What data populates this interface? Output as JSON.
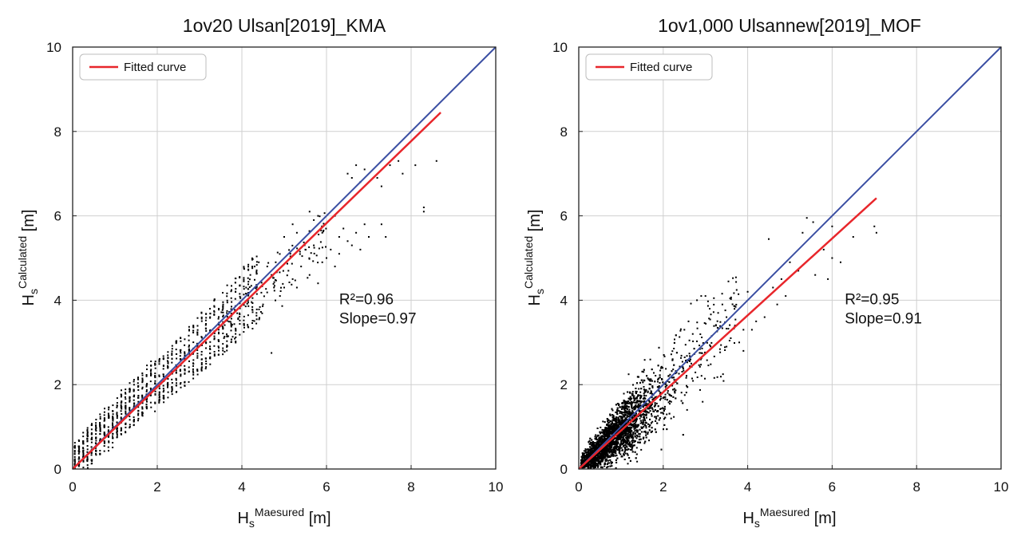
{
  "chart_data": [
    {
      "type": "scatter",
      "title": "1ov20 Ulsan[2019]_KMA",
      "xlabel": {
        "base": "H",
        "sub": "s",
        "sup": "Maesured",
        "unit": " [m]"
      },
      "ylabel": {
        "base": "H",
        "sub": "s",
        "sup": "Calculated",
        "unit": " [m]"
      },
      "xlim": [
        0,
        10
      ],
      "ylim": [
        0,
        10
      ],
      "xticks": [
        0,
        2,
        4,
        6,
        8,
        10
      ],
      "yticks": [
        0,
        2,
        4,
        6,
        8,
        10
      ],
      "grid": true,
      "legend": {
        "position": "top-left",
        "entries": [
          {
            "label": "Fitted curve",
            "color": "#e8262b"
          }
        ]
      },
      "reference_line": {
        "color": "#3b4fa3",
        "x": [
          0,
          10
        ],
        "y": [
          0,
          10
        ]
      },
      "fitted_line": {
        "color": "#e8262b",
        "x": [
          0,
          8.7
        ],
        "y": [
          0,
          8.45
        ]
      },
      "annotation": {
        "r2": "R²=0.96",
        "slope": "Slope=0.97",
        "x": 6.3,
        "y": 3.9
      },
      "scatter_style": "banded",
      "outliers": [
        [
          6.1,
          5.2
        ],
        [
          6.3,
          5.5
        ],
        [
          6.5,
          5.4
        ],
        [
          6.7,
          5.6
        ],
        [
          6.9,
          5.8
        ],
        [
          7.0,
          5.5
        ],
        [
          6.4,
          5.7
        ],
        [
          6.0,
          5.0
        ],
        [
          7.3,
          5.8
        ],
        [
          7.4,
          5.5
        ],
        [
          6.3,
          5.1
        ],
        [
          6.6,
          5.3
        ],
        [
          6.8,
          5.2
        ],
        [
          7.5,
          7.2
        ],
        [
          7.7,
          7.3
        ],
        [
          7.8,
          7.0
        ],
        [
          8.1,
          7.2
        ],
        [
          8.6,
          7.3
        ],
        [
          6.9,
          7.1
        ],
        [
          6.7,
          7.2
        ],
        [
          6.6,
          6.9
        ],
        [
          6.5,
          7.0
        ],
        [
          6.8,
          6.8
        ],
        [
          7.2,
          6.9
        ],
        [
          7.3,
          6.7
        ],
        [
          8.3,
          6.2
        ],
        [
          8.3,
          6.1
        ],
        [
          5.8,
          6.0
        ],
        [
          5.7,
          5.9
        ],
        [
          5.6,
          6.1
        ],
        [
          5.3,
          5.6
        ],
        [
          5.2,
          5.8
        ],
        [
          5.0,
          5.5
        ],
        [
          5.4,
          4.8
        ],
        [
          5.6,
          4.6
        ],
        [
          5.8,
          4.4
        ],
        [
          5.2,
          4.5
        ],
        [
          5.0,
          4.3
        ],
        [
          4.8,
          4.9
        ],
        [
          4.6,
          4.8
        ],
        [
          4.4,
          4.9
        ],
        [
          4.7,
          4.6
        ],
        [
          4.7,
          2.75
        ],
        [
          4.2,
          4.6
        ],
        [
          4.3,
          4.8
        ],
        [
          5.5,
          5.2
        ],
        [
          5.9,
          4.9
        ],
        [
          6.2,
          4.8
        ],
        [
          4.1,
          4.3
        ],
        [
          4.5,
          3.9
        ],
        [
          4.9,
          4.1
        ],
        [
          5.1,
          4.7
        ],
        [
          5.3,
          4.3
        ],
        [
          5.7,
          5.3
        ],
        [
          5.9,
          5.6
        ],
        [
          6.2,
          6.0
        ]
      ]
    },
    {
      "type": "scatter",
      "title": "1ov1,000 Ulsannew[2019]_MOF",
      "xlabel": {
        "base": "H",
        "sub": "s",
        "sup": "Maesured",
        "unit": " [m]"
      },
      "ylabel": {
        "base": "H",
        "sub": "s",
        "sup": "Calculated",
        "unit": " [m]"
      },
      "xlim": [
        0,
        10
      ],
      "ylim": [
        0,
        10
      ],
      "xticks": [
        0,
        2,
        4,
        6,
        8,
        10
      ],
      "yticks": [
        0,
        2,
        4,
        6,
        8,
        10
      ],
      "grid": true,
      "legend": {
        "position": "top-left",
        "entries": [
          {
            "label": "Fitted curve",
            "color": "#e8262b"
          }
        ]
      },
      "reference_line": {
        "color": "#3b4fa3",
        "x": [
          0,
          10
        ],
        "y": [
          0,
          10
        ]
      },
      "fitted_line": {
        "color": "#e8262b",
        "x": [
          0,
          7.05
        ],
        "y": [
          0,
          6.42
        ]
      },
      "annotation": {
        "r2": "R²=0.95",
        "slope": "Slope=0.91",
        "x": 6.3,
        "y": 3.9
      },
      "scatter_style": "cloud",
      "outliers": [
        [
          5.4,
          5.95
        ],
        [
          5.55,
          5.85
        ],
        [
          5.3,
          5.6
        ],
        [
          6.0,
          5.75
        ],
        [
          6.5,
          5.5
        ],
        [
          6.2,
          4.9
        ],
        [
          6.0,
          5.0
        ],
        [
          5.9,
          4.5
        ],
        [
          5.6,
          4.6
        ],
        [
          5.2,
          4.7
        ],
        [
          5.0,
          4.9
        ],
        [
          4.8,
          4.5
        ],
        [
          4.5,
          5.45
        ],
        [
          4.9,
          4.1
        ],
        [
          4.7,
          3.9
        ],
        [
          4.4,
          3.6
        ],
        [
          4.2,
          3.5
        ],
        [
          4.0,
          4.2
        ],
        [
          3.9,
          3.3
        ],
        [
          3.7,
          3.4
        ],
        [
          3.6,
          3.1
        ],
        [
          3.5,
          3.6
        ],
        [
          3.4,
          3.9
        ],
        [
          3.2,
          4.05
        ],
        [
          3.0,
          4.1
        ],
        [
          2.9,
          4.1
        ],
        [
          2.8,
          4.0
        ],
        [
          3.3,
          3.7
        ],
        [
          3.1,
          3.8
        ],
        [
          7.0,
          5.75
        ],
        [
          7.05,
          5.6
        ],
        [
          3.8,
          3.0
        ],
        [
          4.6,
          4.3
        ],
        [
          5.8,
          5.2
        ],
        [
          2.6,
          3.5
        ],
        [
          2.7,
          3.2
        ],
        [
          2.5,
          3.3
        ],
        [
          3.5,
          2.9
        ],
        [
          3.9,
          2.8
        ],
        [
          4.1,
          3.3
        ]
      ]
    }
  ]
}
